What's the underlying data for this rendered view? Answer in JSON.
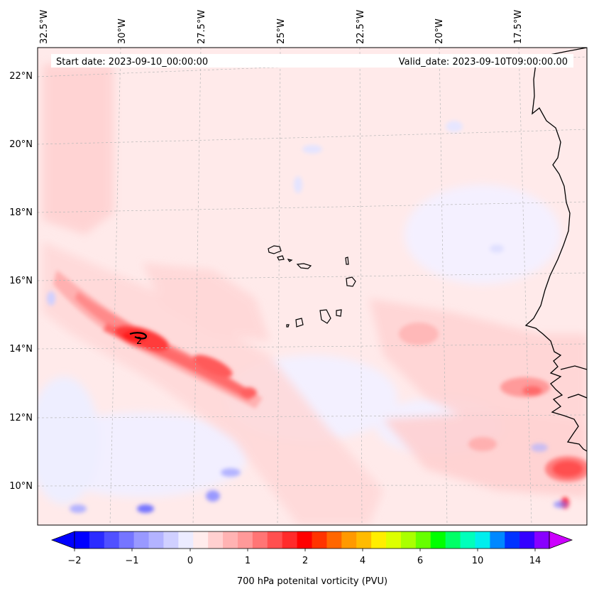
{
  "map": {
    "start_date": "Start date: 2023-09-10_00:00:00",
    "valid_date": "Valid_date: 2023-09-10T09:00:00.00",
    "lon_labels": [
      "32.5°W",
      "30°W",
      "27.5°W",
      "25°W",
      "22.5°W",
      "20°W",
      "17.5°W"
    ],
    "lat_labels": [
      "22°N",
      "20°N",
      "18°N",
      "16°N",
      "14°N",
      "12°N",
      "10°N"
    ],
    "contour_label": "2"
  },
  "colorbar": {
    "title": "700 hPa potenital vorticity (PVU)",
    "tick_labels": [
      "−2",
      "−1",
      "0",
      "1",
      "2",
      "4",
      "6",
      "10",
      "14"
    ],
    "colors": [
      "#0000ff",
      "#2b2bff",
      "#5050ff",
      "#7575ff",
      "#9999ff",
      "#b3b3ff",
      "#d0d0ff",
      "#ececff",
      "#ffecec",
      "#ffd0d0",
      "#ffb3b3",
      "#ff9999",
      "#ff7575",
      "#ff5050",
      "#ff2b2b",
      "#ff0000",
      "#ff3300",
      "#ff6600",
      "#ff9900",
      "#ffbb00",
      "#ffee00",
      "#ddff00",
      "#aaff00",
      "#66ff00",
      "#00ff00",
      "#00ff66",
      "#00ffbb",
      "#00eeee",
      "#0088ff",
      "#0033ff",
      "#3300ff",
      "#8800ff"
    ],
    "under_color": "#0000ff",
    "over_color": "#cc00ff"
  }
}
